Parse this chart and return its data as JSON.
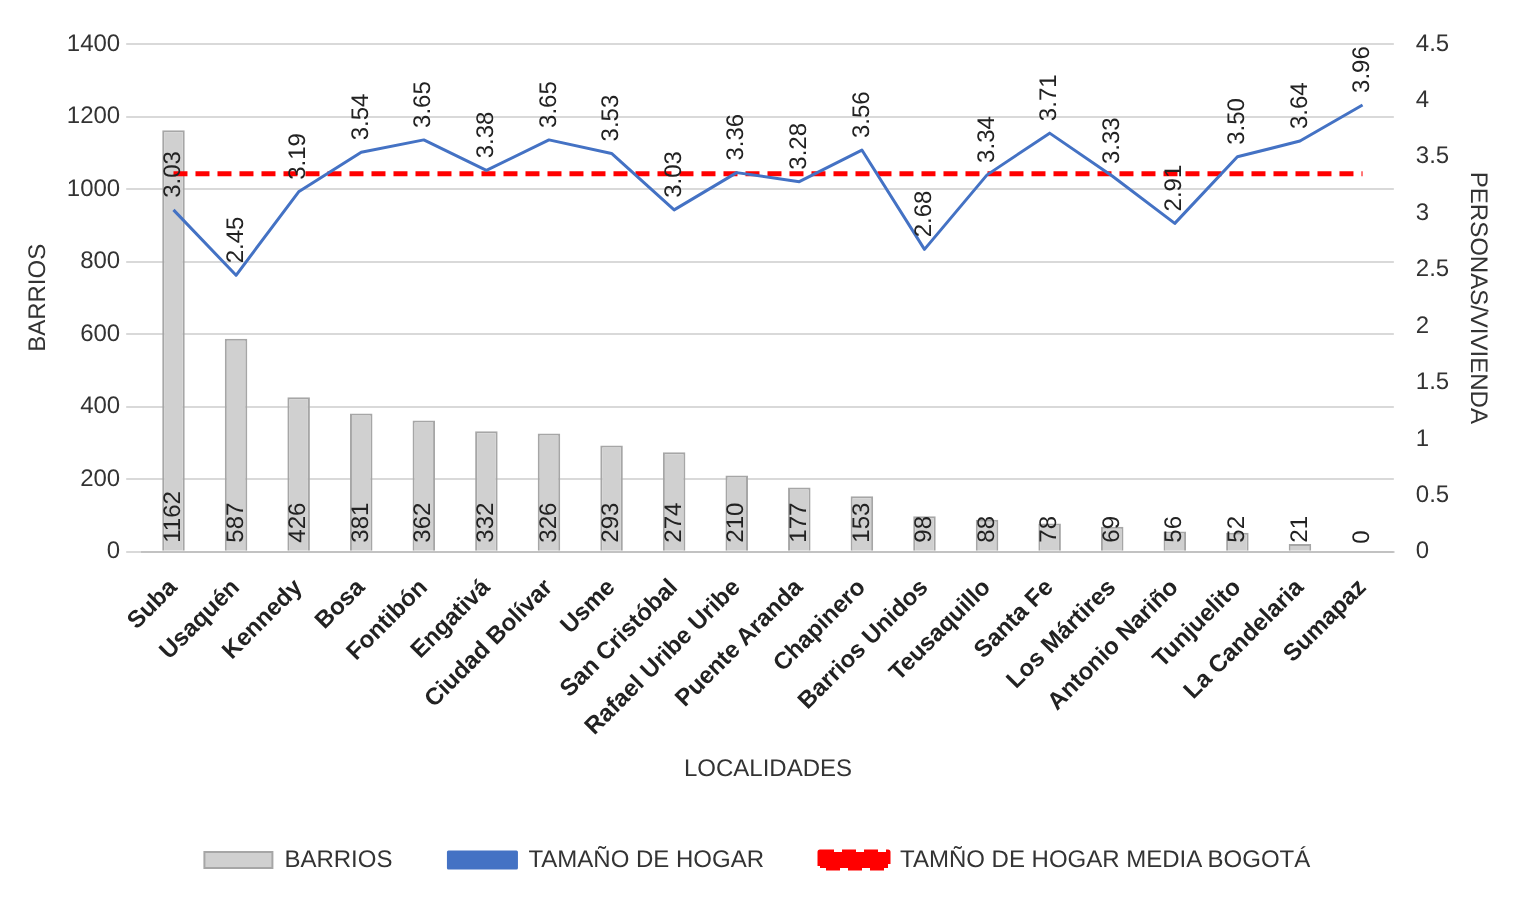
{
  "chart_data": {
    "type": "bar",
    "xlabel": "LOCALIDADES",
    "ylabel": "BARRIOS",
    "y2label": "PERSONAS/VIVIENDA",
    "categories": [
      "Suba",
      "Usaquén",
      "Kennedy",
      "Bosa",
      "Fontibón",
      "Engativá",
      "Ciudad Bolívar",
      "Usme",
      "San Cristóbal",
      "Rafael Uribe Uribe",
      "Puente Aranda",
      "Chapinero",
      "Barrios Unidos",
      "Teusaquillo",
      "Santa Fe",
      "Los Mártires",
      "Antonio Nariño",
      "Tunjuelito",
      "La Candelaria",
      "Sumapaz"
    ],
    "series": [
      {
        "name": "BARRIOS",
        "color": "#d0d0d0",
        "values": [
          1162,
          587,
          426,
          381,
          362,
          332,
          326,
          293,
          274,
          210,
          177,
          153,
          98,
          88,
          78,
          69,
          56,
          52,
          21,
          0
        ],
        "value_labels": [
          "1162",
          "587",
          "426",
          "381",
          "362",
          "332",
          "326",
          "293",
          "274",
          "210",
          "177",
          "153",
          "98",
          "88",
          "78",
          "69",
          "56",
          "52",
          "21",
          "0"
        ]
      },
      {
        "name": "TAMAÑO DE HOGAR",
        "type": "line",
        "axis": "y2",
        "color": "#4472c4",
        "values": [
          3.03,
          2.45,
          3.19,
          3.54,
          3.65,
          3.38,
          3.65,
          3.53,
          3.03,
          3.36,
          3.28,
          3.56,
          2.68,
          3.34,
          3.71,
          3.33,
          2.91,
          3.5,
          3.64,
          3.96
        ],
        "value_labels": [
          "3.03",
          "2.45",
          "3.19",
          "3.54",
          "3.65",
          "3.38",
          "3.65",
          "3.53",
          "3.03",
          "3.36",
          "3.28",
          "3.56",
          "2.68",
          "3.34",
          "3.71",
          "3.33",
          "2.91",
          "3.50",
          "3.64",
          "3.96"
        ]
      },
      {
        "name": "TAMÑO DE HOGAR MEDIA BOGOTÁ",
        "type": "line",
        "axis": "y2",
        "line_style": "dashed",
        "color": "#ff0000",
        "values": [
          3.35,
          3.35,
          3.35,
          3.35,
          3.35,
          3.35,
          3.35,
          3.35,
          3.35,
          3.35,
          3.35,
          3.35,
          3.35,
          3.35,
          3.35,
          3.35,
          3.35,
          3.35,
          3.35,
          3.35
        ]
      }
    ],
    "ylim": [
      0,
      1400
    ],
    "yticks": [
      0,
      200,
      400,
      600,
      800,
      1000,
      1200,
      1400
    ],
    "y2lim": [
      0,
      4.5
    ],
    "y2ticks": [
      0,
      0.5,
      1,
      1.5,
      2,
      2.5,
      3,
      3.5,
      4,
      4.5
    ],
    "grid": "y",
    "legend": "bottom",
    "marker": "none"
  }
}
